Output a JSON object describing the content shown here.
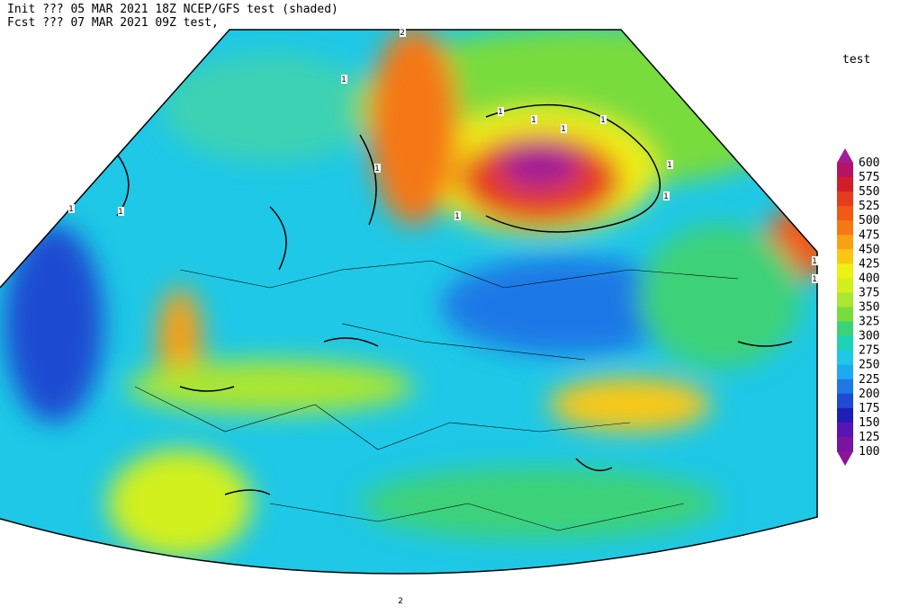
{
  "header": {
    "line1": "Init  ??? 05 MAR 2021 18Z  NCEP/GFS test (shaded)",
    "line2": "Fcst ??? 07 MAR 2021 09Z  test,"
  },
  "legend": {
    "title": "test",
    "levels": [
      600,
      575,
      550,
      525,
      500,
      475,
      450,
      425,
      400,
      375,
      350,
      325,
      300,
      275,
      250,
      225,
      200,
      175,
      150,
      125,
      100
    ],
    "colors": [
      "#a01e96",
      "#b41464",
      "#d21e28",
      "#e63c1e",
      "#f05a14",
      "#f57814",
      "#faa014",
      "#fac814",
      "#f0f014",
      "#d2f01e",
      "#aae632",
      "#78dc3c",
      "#3cd278",
      "#1ed2b4",
      "#1ec8e6",
      "#1eaaf0",
      "#1e78e6",
      "#1e4bd2",
      "#1e1eb4",
      "#5a14b4",
      "#7814a0",
      "#8c1496"
    ]
  },
  "contour_labels": [
    "2",
    "1",
    "1",
    "1",
    "1",
    "1",
    "1",
    "1",
    "1",
    "1",
    "1",
    "1",
    "1",
    "1",
    "2"
  ]
}
